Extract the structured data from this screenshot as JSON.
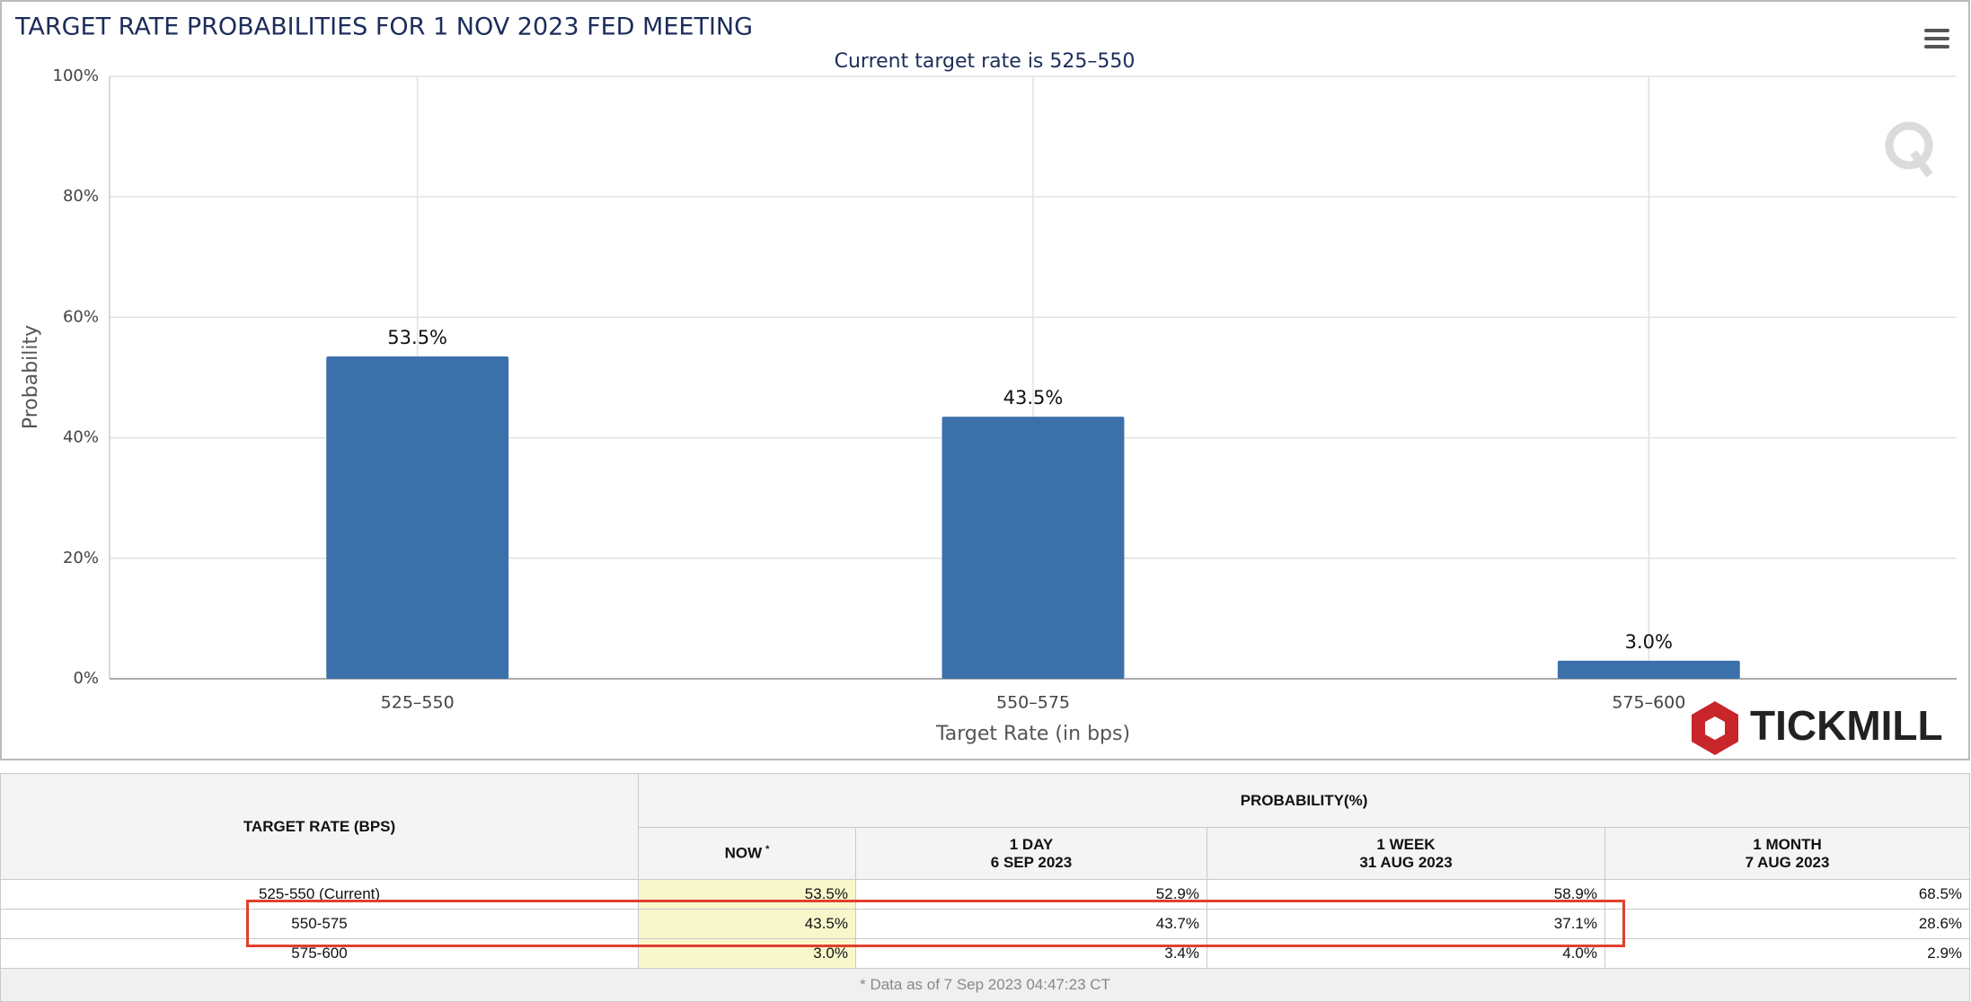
{
  "chart_data": {
    "type": "bar",
    "title": "TARGET RATE PROBABILITIES FOR 1 NOV 2023 FED MEETING",
    "subtitle": "Current target rate is 525–550",
    "x_label": "Target Rate (in bps)",
    "y_label": "Probability",
    "categories": [
      "525–550",
      "550–575",
      "575–600"
    ],
    "values": [
      53.5,
      43.5,
      3.0
    ],
    "value_labels": [
      "53.5%",
      "43.5%",
      "3.0%"
    ],
    "color": "#3c70aa",
    "ylim": [
      0,
      100
    ],
    "yticks": [
      {
        "value": 0,
        "label": "0%"
      },
      {
        "value": 20,
        "label": "20%"
      },
      {
        "value": 40,
        "label": "40%"
      },
      {
        "value": 60,
        "label": "60%"
      },
      {
        "value": 80,
        "label": "80%"
      },
      {
        "value": 100,
        "label": "100%"
      }
    ],
    "grid": true
  },
  "logo": "TICKMILL",
  "table": {
    "rate_header": "TARGET RATE (BPS)",
    "prob_header": "PROBABILITY(%)",
    "columns": [
      {
        "title": "NOW",
        "note": "*"
      },
      {
        "title": "1 DAY",
        "date": "6 SEP 2023"
      },
      {
        "title": "1 WEEK",
        "date": "31 AUG 2023"
      },
      {
        "title": "1 MONTH",
        "date": "7 AUG 2023"
      }
    ],
    "rows": [
      [
        "525-550 (Current)",
        "53.5%",
        "52.9%",
        "58.9%",
        "68.5%"
      ],
      [
        "550-575",
        "43.5%",
        "43.7%",
        "37.1%",
        "28.6%"
      ],
      [
        "575-600",
        "3.0%",
        "3.4%",
        "4.0%",
        "2.9%"
      ]
    ],
    "footnote": "* Data as of 7 Sep 2023 04:47:23 CT"
  }
}
